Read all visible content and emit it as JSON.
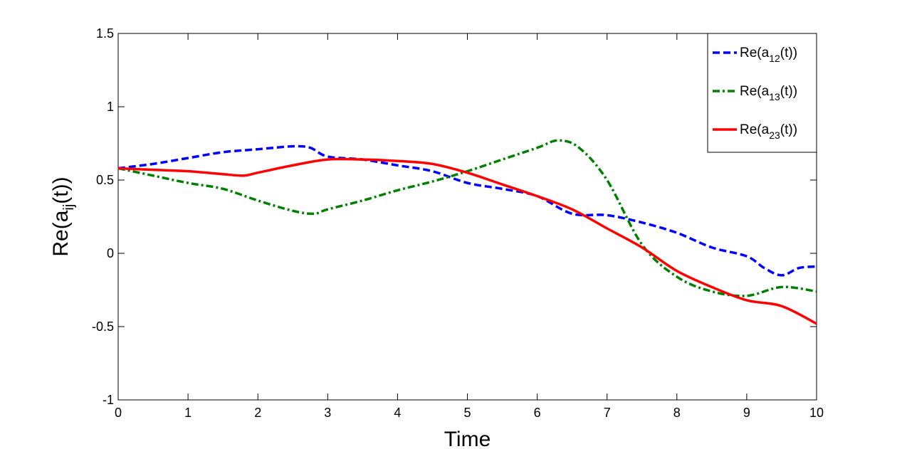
{
  "chart_data": {
    "type": "line",
    "xlabel": "Time",
    "ylabel": "Re(a",
    "ylabel_sub": "ij",
    "ylabel_end": "(t))",
    "xlim": [
      0,
      10
    ],
    "ylim": [
      -1,
      1.5
    ],
    "xticks": [
      "0",
      "1",
      "2",
      "3",
      "4",
      "5",
      "6",
      "7",
      "8",
      "9",
      "10"
    ],
    "yticks": [
      "-1",
      "-0.5",
      "0",
      "0.5",
      "1",
      "1.5"
    ],
    "grid": false,
    "legend_position": "top-right",
    "series": [
      {
        "name": "Re(a12(t))",
        "label_main": "Re(a",
        "label_sub": "12",
        "label_end": "(t))",
        "color": "#0000ff",
        "style": "dashed",
        "x": [
          0,
          0.5,
          1,
          1.5,
          2,
          2.5,
          2.75,
          3,
          3.5,
          4,
          4.5,
          5,
          5.5,
          6,
          6.5,
          7,
          7.5,
          8,
          8.5,
          9,
          9.25,
          9.5,
          9.75,
          10
        ],
        "y": [
          0.58,
          0.61,
          0.65,
          0.69,
          0.71,
          0.73,
          0.72,
          0.66,
          0.64,
          0.6,
          0.56,
          0.48,
          0.44,
          0.39,
          0.27,
          0.26,
          0.21,
          0.14,
          0.04,
          -0.02,
          -0.1,
          -0.15,
          -0.1,
          -0.09
        ]
      },
      {
        "name": "Re(a13(t))",
        "label_main": "Re(a",
        "label_sub": "13",
        "label_end": "(t))",
        "color": "#007f00",
        "style": "dashdot",
        "x": [
          0,
          0.5,
          1,
          1.5,
          2,
          2.5,
          2.8,
          3,
          3.5,
          4,
          4.5,
          5,
          5.5,
          6,
          6.3,
          6.6,
          7,
          7.5,
          8,
          8.5,
          9,
          9.5,
          10
        ],
        "y": [
          0.58,
          0.53,
          0.48,
          0.44,
          0.36,
          0.29,
          0.27,
          0.3,
          0.36,
          0.43,
          0.49,
          0.56,
          0.64,
          0.72,
          0.77,
          0.72,
          0.5,
          0.06,
          -0.16,
          -0.26,
          -0.29,
          -0.23,
          -0.26
        ]
      },
      {
        "name": "Re(a23(t))",
        "label_main": "Re(a",
        "label_sub": "23",
        "label_end": "(t))",
        "color": "#ff0000",
        "style": "solid",
        "x": [
          0,
          0.5,
          1,
          1.5,
          1.8,
          2,
          2.5,
          3,
          3.5,
          4,
          4.5,
          5,
          5.5,
          6,
          6.5,
          7,
          7.5,
          8,
          8.5,
          9,
          9.5,
          10
        ],
        "y": [
          0.58,
          0.57,
          0.56,
          0.54,
          0.53,
          0.55,
          0.6,
          0.64,
          0.64,
          0.63,
          0.61,
          0.55,
          0.47,
          0.39,
          0.3,
          0.17,
          0.04,
          -0.12,
          -0.23,
          -0.32,
          -0.36,
          -0.48
        ]
      }
    ]
  }
}
